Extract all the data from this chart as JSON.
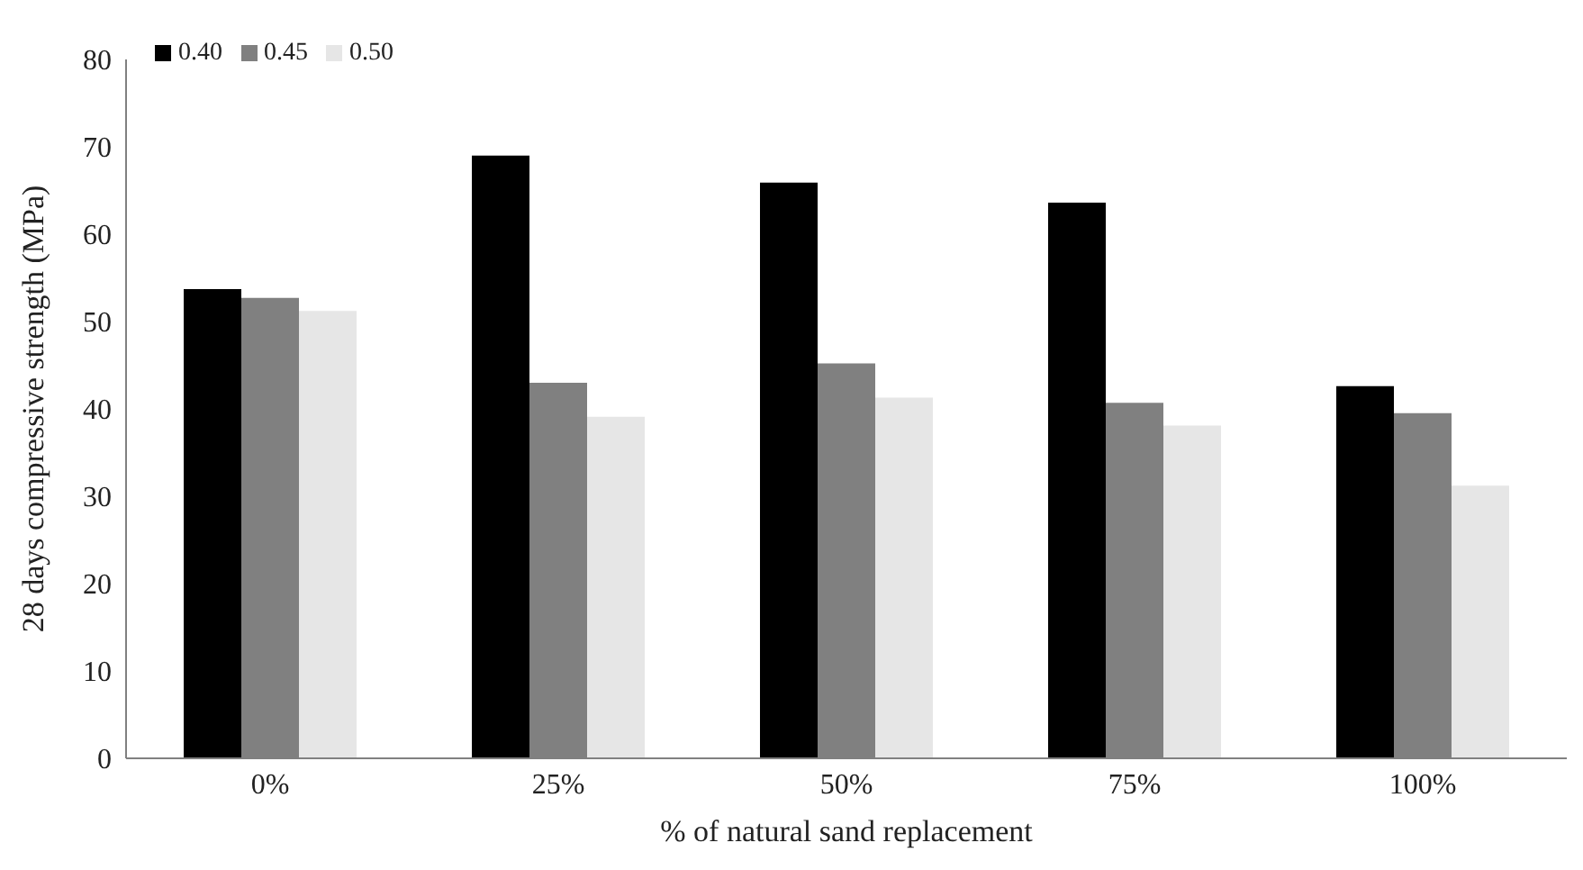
{
  "chart_data": {
    "type": "bar",
    "xlabel": "% of natural sand replacement",
    "ylabel": "28 days compressive strength (MPa)",
    "categories": [
      "0%",
      "25%",
      "50%",
      "75%",
      "100%"
    ],
    "series": [
      {
        "name": "0.40",
        "color": "#000000",
        "values": [
          53.7,
          69.0,
          65.9,
          63.6,
          42.6
        ]
      },
      {
        "name": "0.45",
        "color": "#808080",
        "values": [
          52.7,
          43.0,
          45.2,
          40.7,
          39.5
        ]
      },
      {
        "name": "0.50",
        "color": "#e6e6e6",
        "values": [
          51.2,
          39.1,
          41.3,
          38.1,
          31.2
        ]
      }
    ],
    "ylim": [
      0,
      80
    ],
    "yticks": [
      0,
      10,
      20,
      30,
      40,
      50,
      60,
      70,
      80
    ],
    "grid": false,
    "legend": "top left"
  }
}
